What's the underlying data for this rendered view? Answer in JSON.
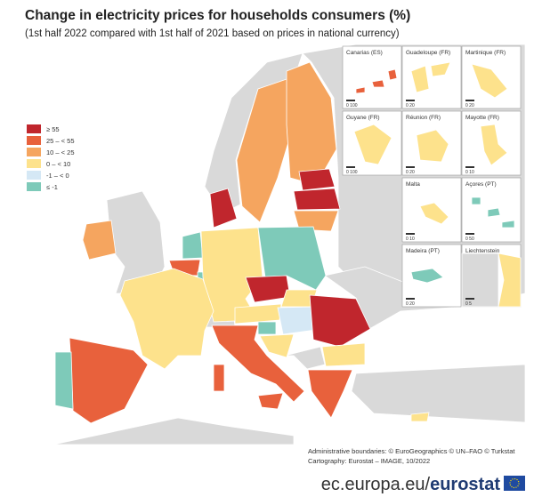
{
  "header": {
    "title": "Change in electricity prices for households consumers (%)",
    "subtitle": "(1st half 2022 compared with 1st half of 2021 based on prices in national currency)"
  },
  "legend": [
    {
      "label": "≥ 55",
      "color": "#c0262d"
    },
    {
      "label": "25 – < 55",
      "color": "#e8613c"
    },
    {
      "label": "10 – < 25",
      "color": "#f5a55f"
    },
    {
      "label": "0 – < 10",
      "color": "#fde28c"
    },
    {
      "label": "-1 – < 0",
      "color": "#d5e8f5"
    },
    {
      "label": "≤ -1",
      "color": "#7ecab9"
    }
  ],
  "insets": [
    {
      "label": "Canarias (ES)",
      "scale": "0   100"
    },
    {
      "label": "Guadeloupe (FR)",
      "scale": "0   20"
    },
    {
      "label": "Martinique (FR)",
      "scale": "0   20"
    },
    {
      "label": "Guyane (FR)",
      "scale": "0   100"
    },
    {
      "label": "Réunion (FR)",
      "scale": "0   20"
    },
    {
      "label": "Mayotte (FR)",
      "scale": "0   10"
    },
    {
      "label": "Malta",
      "scale": "0   10"
    },
    {
      "label": "Açores (PT)",
      "scale": "0   50"
    },
    {
      "label": "Madeira (PT)",
      "scale": "0   20"
    },
    {
      "label": "Liechtenstein",
      "scale": "0   5"
    }
  ],
  "credits": [
    "Administrative boundaries: © EuroGeographics © UN–FAO © Turkstat",
    "Cartography: Eurostat – IMAGE, 10/2022"
  ],
  "footer": {
    "url": "ec.europa.eu/",
    "brand": "eurostat"
  }
}
